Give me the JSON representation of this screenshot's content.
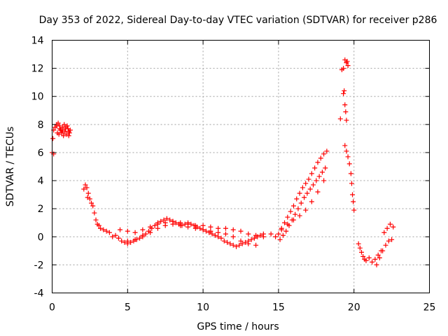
{
  "chart_data": {
    "type": "scatter",
    "title": "Day 353 of 2022, Sidereal Day-to-day VTEC variation (SDTVAR) for receiver p286",
    "xlabel": "GPS time / hours",
    "ylabel": "SDTVAR / TECUs",
    "xlim": [
      0,
      25
    ],
    "ylim": [
      -4,
      14
    ],
    "xticks": [
      0,
      5,
      10,
      15,
      20,
      25
    ],
    "yticks": [
      -4,
      -2,
      0,
      2,
      4,
      6,
      8,
      10,
      12,
      14
    ],
    "xtick_labels": [
      "0",
      "5",
      "10",
      "15",
      "20",
      "25"
    ],
    "ytick_labels": [
      "-4",
      "-2",
      "0",
      "2",
      "4",
      "6",
      "8",
      "10",
      "12",
      "14"
    ],
    "grid": true,
    "marker": "plus",
    "series": [
      {
        "name": "SDTVAR",
        "color": "#ff0000",
        "x": [
          0.0,
          0.05,
          0.1,
          0.1,
          0.2,
          0.3,
          0.35,
          0.4,
          0.5,
          0.6,
          0.7,
          0.8,
          0.9,
          1.0,
          1.1,
          1.2,
          0.45,
          0.55,
          0.65,
          0.75,
          0.85,
          0.95,
          1.05,
          1.15,
          0.3,
          0.5,
          0.7,
          0.9,
          1.1,
          2.1,
          2.2,
          2.3,
          2.35,
          2.4,
          2.5,
          2.6,
          2.7,
          2.8,
          2.9,
          3.0,
          3.1,
          3.2,
          3.4,
          3.6,
          3.8,
          4.0,
          4.2,
          4.4,
          4.6,
          4.8,
          5.0,
          5.2,
          5.4,
          5.6,
          5.8,
          6.0,
          6.2,
          6.4,
          6.6,
          6.8,
          7.0,
          7.2,
          7.4,
          7.6,
          7.8,
          8.0,
          8.2,
          8.4,
          8.6,
          8.8,
          9.0,
          9.2,
          9.4,
          9.6,
          9.8,
          10.0,
          10.2,
          10.4,
          10.6,
          10.8,
          11.0,
          11.2,
          11.4,
          11.6,
          11.8,
          12.0,
          12.2,
          12.4,
          12.6,
          12.8,
          13.0,
          13.2,
          13.4,
          13.6,
          13.8,
          14.0,
          4.5,
          5.0,
          5.5,
          6.0,
          6.5,
          7.0,
          7.5,
          8.0,
          8.5,
          9.0,
          9.5,
          10.0,
          10.5,
          11.0,
          11.5,
          12.0,
          12.5,
          13.0,
          13.5,
          14.0,
          14.5,
          5.0,
          5.5,
          6.0,
          6.5,
          7.0,
          7.5,
          8.0,
          8.5,
          9.0,
          9.5,
          10.0,
          10.5,
          11.0,
          11.5,
          12.0,
          12.5,
          13.0,
          13.5,
          14.8,
          15.0,
          15.2,
          15.4,
          15.6,
          15.8,
          16.0,
          16.2,
          16.4,
          16.6,
          16.8,
          17.0,
          17.2,
          17.4,
          17.6,
          17.8,
          18.0,
          18.2,
          15.1,
          15.3,
          15.5,
          15.7,
          15.9,
          16.1,
          16.3,
          16.5,
          16.7,
          16.9,
          17.1,
          17.3,
          17.5,
          17.7,
          17.9,
          18.1,
          15.2,
          15.6,
          16.0,
          16.4,
          16.8,
          17.2,
          17.6,
          18.0,
          19.1,
          19.2,
          19.3,
          19.3,
          19.35,
          19.4,
          19.4,
          19.45,
          19.5,
          19.5,
          19.55,
          19.6,
          19.4,
          19.5,
          19.6,
          19.7,
          19.8,
          19.85,
          19.9,
          19.95,
          20.0,
          20.3,
          20.4,
          20.5,
          20.6,
          20.7,
          20.8,
          21.0,
          21.2,
          21.4,
          21.5,
          21.6,
          21.8,
          22.0,
          22.2,
          22.4,
          22.6,
          21.7,
          21.9,
          22.1,
          22.3,
          22.5
        ],
        "y": [
          6.0,
          7.0,
          7.6,
          5.9,
          7.8,
          8.0,
          7.4,
          8.1,
          7.9,
          7.6,
          7.8,
          8.0,
          7.7,
          7.9,
          7.5,
          7.6,
          7.3,
          7.6,
          7.4,
          7.2,
          7.5,
          7.3,
          7.7,
          7.4,
          7.9,
          7.7,
          7.6,
          7.8,
          7.2,
          3.4,
          3.7,
          3.5,
          2.8,
          3.1,
          2.7,
          2.4,
          2.2,
          1.7,
          1.2,
          0.9,
          0.8,
          0.6,
          0.5,
          0.4,
          0.3,
          0.0,
          0.1,
          -0.1,
          -0.3,
          -0.4,
          -0.5,
          -0.4,
          -0.3,
          -0.2,
          -0.1,
          0.1,
          0.2,
          0.4,
          0.6,
          0.8,
          1.0,
          1.1,
          1.2,
          1.3,
          1.2,
          1.1,
          1.0,
          0.9,
          0.8,
          0.9,
          1.0,
          0.9,
          0.8,
          0.7,
          0.6,
          0.5,
          0.4,
          0.3,
          0.2,
          0.1,
          0.0,
          -0.1,
          -0.3,
          -0.4,
          -0.5,
          -0.6,
          -0.7,
          -0.6,
          -0.5,
          -0.4,
          -0.3,
          -0.2,
          -0.1,
          0.0,
          0.1,
          0.2,
          0.5,
          0.4,
          0.3,
          0.5,
          0.7,
          0.9,
          1.0,
          1.1,
          1.0,
          0.9,
          0.8,
          0.8,
          0.7,
          0.6,
          0.6,
          0.5,
          0.4,
          0.2,
          0.1,
          0.0,
          0.2,
          -0.3,
          -0.2,
          0.0,
          0.3,
          0.6,
          0.8,
          0.9,
          0.8,
          0.7,
          0.6,
          0.5,
          0.4,
          0.3,
          0.2,
          0.0,
          -0.3,
          -0.5,
          -0.6,
          0.0,
          0.2,
          0.6,
          1.0,
          1.4,
          1.8,
          2.2,
          2.7,
          3.1,
          3.5,
          3.8,
          4.1,
          4.5,
          4.9,
          5.3,
          5.6,
          5.9,
          6.1,
          -0.2,
          0.1,
          0.4,
          0.8,
          1.2,
          1.6,
          2.0,
          2.4,
          2.8,
          3.1,
          3.4,
          3.7,
          4.0,
          4.3,
          4.6,
          4.9,
          0.5,
          0.9,
          1.2,
          1.5,
          1.9,
          2.5,
          3.2,
          4.0,
          8.4,
          11.9,
          12.0,
          10.2,
          10.4,
          12.6,
          9.4,
          8.9,
          12.4,
          8.3,
          12.5,
          12.2,
          6.5,
          6.1,
          5.7,
          5.2,
          4.5,
          3.8,
          3.0,
          2.5,
          1.9,
          -0.5,
          -0.8,
          -1.1,
          -1.4,
          -1.6,
          -1.7,
          -1.5,
          -1.8,
          -1.6,
          -2.0,
          -1.3,
          -1.0,
          0.3,
          0.6,
          0.9,
          0.7,
          -1.5,
          -1.0,
          -0.6,
          -0.3,
          -0.2
        ]
      }
    ]
  }
}
